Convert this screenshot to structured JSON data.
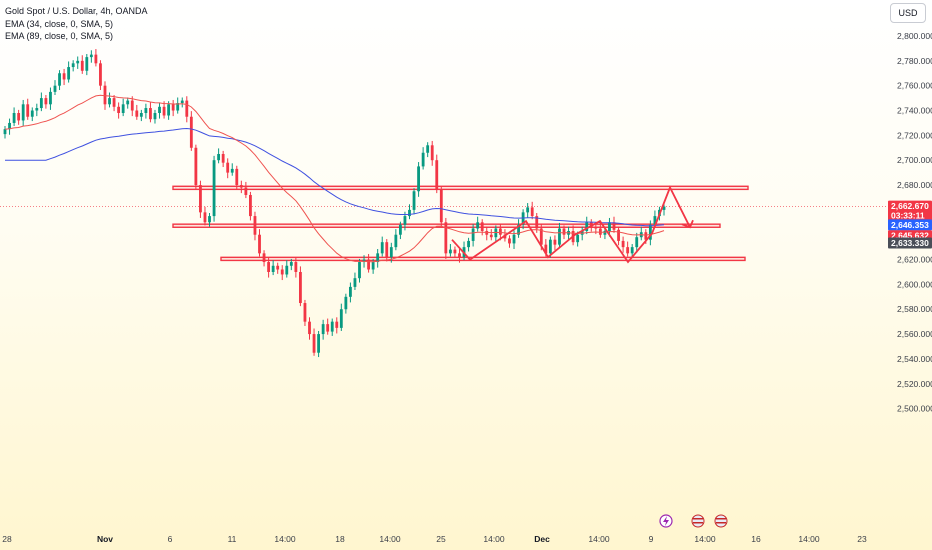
{
  "legend": {
    "title": "Gold Spot / U.S. Dollar, 4h, OANDA",
    "ema1": "EMA (34, close, 0, SMA, 5)",
    "ema2": "EMA (89, close, 0, SMA, 5)"
  },
  "currency_button": "USD",
  "chart_data": {
    "type": "candlestick",
    "symbol": "Gold Spot / U.S. Dollar",
    "interval": "4h",
    "source": "OANDA",
    "y_ticks": [
      2800,
      2780,
      2760,
      2740,
      2720,
      2700,
      2680,
      2660,
      2640,
      2620,
      2600,
      2580,
      2560,
      2540,
      2520,
      2500
    ],
    "y_tick_labels": [
      "2,800.000",
      "2,780.000",
      "2,760.000",
      "2,740.000",
      "2,720.000",
      "2,700.000",
      "2,680.000",
      "2,660.000",
      "2,640.000",
      "2,620.000",
      "2,600.000",
      "2,580.000",
      "2,560.000",
      "2,540.000",
      "2,520.000",
      "2,500.000"
    ],
    "ylim": [
      2497,
      2812
    ],
    "x_labels": [
      {
        "label": "28",
        "bold": false
      },
      {
        "label": "Nov",
        "bold": true
      },
      {
        "label": "6",
        "bold": false
      },
      {
        "label": "11",
        "bold": false
      },
      {
        "label": "14:00",
        "bold": false
      },
      {
        "label": "18",
        "bold": false
      },
      {
        "label": "14:00",
        "bold": false
      },
      {
        "label": "25",
        "bold": false
      },
      {
        "label": "14:00",
        "bold": false
      },
      {
        "label": "Dec",
        "bold": true
      },
      {
        "label": "14:00",
        "bold": false
      },
      {
        "label": "9",
        "bold": false
      },
      {
        "label": "14:00",
        "bold": false
      },
      {
        "label": "16",
        "bold": false
      },
      {
        "label": "14:00",
        "bold": false
      },
      {
        "label": "23",
        "bold": false
      }
    ],
    "price_labels": [
      {
        "value": 2662.67,
        "text": "2,662.670",
        "sub": "03:33:11",
        "color": "#f23645"
      },
      {
        "value": 2646.353,
        "text": "2,646.353",
        "color": "#2962ff"
      },
      {
        "value": 2645.632,
        "text": "2,645.632",
        "color": "#f23645"
      },
      {
        "value": 2633.33,
        "text": "2,633.330",
        "color": "#4a4e58"
      }
    ],
    "zones": [
      {
        "from": 2676.5,
        "to": 2679
      },
      {
        "from": 2646,
        "to": 2648.5
      },
      {
        "from": 2619.3,
        "to": 2621.8
      }
    ],
    "closes": [
      2725,
      2730,
      2738,
      2732,
      2745,
      2735,
      2740,
      2742,
      2750,
      2745,
      2755,
      2760,
      2770,
      2765,
      2775,
      2778,
      2780,
      2772,
      2783,
      2785,
      2778,
      2760,
      2745,
      2750,
      2743,
      2738,
      2745,
      2748,
      2740,
      2735,
      2738,
      2742,
      2733,
      2738,
      2743,
      2736,
      2745,
      2740,
      2746,
      2748,
      2735,
      2710,
      2680,
      2658,
      2650,
      2655,
      2700,
      2705,
      2698,
      2690,
      2693,
      2680,
      2678,
      2672,
      2655,
      2640,
      2625,
      2618,
      2610,
      2615,
      2612,
      2608,
      2615,
      2618,
      2610,
      2585,
      2570,
      2560,
      2545,
      2560,
      2568,
      2562,
      2570,
      2565,
      2580,
      2590,
      2598,
      2605,
      2618,
      2620,
      2612,
      2618,
      2625,
      2634,
      2622,
      2630,
      2640,
      2648,
      2655,
      2660,
      2675,
      2695,
      2706,
      2712,
      2700,
      2676,
      2650,
      2625,
      2628,
      2625,
      2622,
      2630,
      2635,
      2645,
      2650,
      2643,
      2640,
      2638,
      2645,
      2640,
      2637,
      2633,
      2640,
      2648,
      2658,
      2662,
      2655,
      2645,
      2632,
      2625,
      2636,
      2632,
      2645,
      2640,
      2643,
      2634,
      2640,
      2643,
      2650,
      2646,
      2645,
      2640,
      2643,
      2650,
      2644,
      2635,
      2630,
      2625,
      2630,
      2638,
      2642,
      2636,
      2648,
      2655,
      2660,
      2662.67
    ],
    "overlays": [
      "EMA 34 (red)",
      "EMA 89 (blue)",
      "projection zigzag"
    ]
  }
}
